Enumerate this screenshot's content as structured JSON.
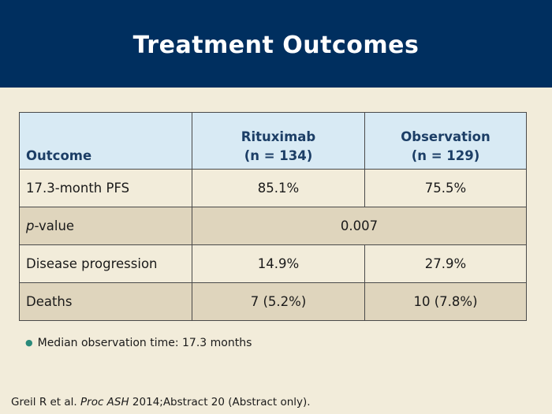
{
  "slide": {
    "title": "Treatment Outcomes"
  },
  "table": {
    "headers": {
      "outcome": "Outcome",
      "rituximab_line1": "Rituximab",
      "rituximab_line2": "(n = 134)",
      "observation_line1": "Observation",
      "observation_line2": "(n = 129)"
    },
    "rows": [
      {
        "label": "17.3-month PFS",
        "rituximab": "85.1%",
        "observation": "75.5%"
      },
      {
        "label_italic": "p",
        "label_rest": "-value",
        "combined": "0.007"
      },
      {
        "label": "Disease progression",
        "rituximab": "14.9%",
        "observation": "27.9%"
      },
      {
        "label": "Deaths",
        "rituximab": "7 (5.2%)",
        "observation": "10 (7.8%)"
      }
    ]
  },
  "bullets": [
    {
      "text": "Median observation time: 17.3 months"
    }
  ],
  "citation": {
    "authors": "Greil R et al.",
    "journal": "Proc ASH",
    "details": "2014;Abstract 20 (Abstract only)."
  },
  "colors": {
    "header_bg": "#002f5f",
    "table_header_bg": "#d8eaf4",
    "row_alt_bg": "#dfd5bd",
    "page_bg": "#f2ecda"
  }
}
